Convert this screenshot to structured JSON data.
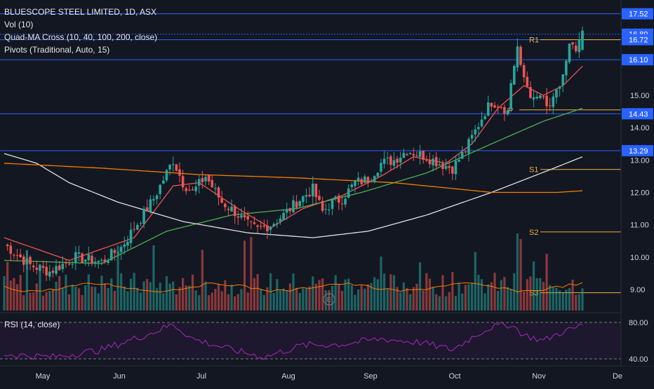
{
  "legend": {
    "title": "BLUESCOPE STEEL LIMITED, 1D, ASX",
    "vol": "Vol (10)",
    "quad_ma": "Quad-MA Cross (10, 40, 100, 200, close)",
    "pivots": "Pivots (Traditional, Auto, 15)"
  },
  "rsi_legend": "RSI (14, close)",
  "colors": {
    "background": "#131722",
    "up": "#26a69a",
    "down": "#ef5350",
    "hline": "#2962ff",
    "pivot": "#f0b23d",
    "ma10": "#ef5350",
    "ma40": "#4caf50",
    "ma100": "#e0e0e0",
    "ma200": "#f57c00",
    "rsi": "#9c27b0",
    "price_tag": "#2962ff"
  },
  "price_axis": {
    "ticks": [
      "15.00",
      "14.00",
      "13.00",
      "12.00",
      "11.00",
      "10.00",
      "9.00"
    ],
    "tags": [
      "17.52",
      "16.89",
      "16.72",
      "16.10",
      "14.43",
      "13.29"
    ]
  },
  "rsi_axis": {
    "ticks": [
      "80.00",
      "40.00"
    ]
  },
  "time_axis": {
    "labels": [
      "May",
      "Jun",
      "Jul",
      "Aug",
      "Sep",
      "Oct",
      "Nov",
      "De"
    ]
  },
  "pivot_labels": [
    "R1",
    "P",
    "S1",
    "S2",
    "S3"
  ],
  "chart_data": {
    "type": "candlestick",
    "symbol": "BLUESCOPE STEEL LIMITED",
    "interval": "1D",
    "exchange": "ASX",
    "ylim": [
      8.4,
      17.9
    ],
    "horizontal_levels": [
      17.52,
      16.89,
      16.72,
      16.1,
      14.43,
      13.29
    ],
    "pivots": {
      "R1": 16.72,
      "P": 14.55,
      "S1": 12.71,
      "S2": 10.78,
      "S3": 8.9
    },
    "close_path": [
      [
        0,
        10.4
      ],
      [
        8,
        9.75
      ],
      [
        14,
        9.55
      ],
      [
        22,
        10.0
      ],
      [
        30,
        9.85
      ],
      [
        36,
        10.3
      ],
      [
        42,
        11.2
      ],
      [
        46,
        11.8
      ],
      [
        50,
        12.6
      ],
      [
        52,
        13.0
      ],
      [
        55,
        12.3
      ],
      [
        58,
        12.0
      ],
      [
        62,
        12.5
      ],
      [
        67,
        11.7
      ],
      [
        71,
        11.4
      ],
      [
        75,
        11.0
      ],
      [
        78,
        10.85
      ],
      [
        82,
        11.0
      ],
      [
        86,
        11.3
      ],
      [
        90,
        11.7
      ],
      [
        95,
        12.1
      ],
      [
        98,
        11.4
      ],
      [
        101,
        11.7
      ],
      [
        104,
        11.8
      ],
      [
        108,
        12.3
      ],
      [
        112,
        12.4
      ],
      [
        116,
        12.9
      ],
      [
        120,
        13.0
      ],
      [
        124,
        13.3
      ],
      [
        130,
        13.1
      ],
      [
        134,
        12.9
      ],
      [
        138,
        12.75
      ],
      [
        142,
        13.3
      ],
      [
        145,
        13.9
      ],
      [
        148,
        14.5
      ],
      [
        150,
        14.8
      ],
      [
        153,
        14.7
      ],
      [
        155,
        14.5
      ],
      [
        156,
        15.4
      ],
      [
        158,
        16.5
      ],
      [
        159,
        15.8
      ],
      [
        161,
        15.3
      ],
      [
        163,
        14.8
      ],
      [
        165,
        15.0
      ],
      [
        167,
        14.6
      ],
      [
        169,
        14.8
      ],
      [
        171,
        15.3
      ],
      [
        173,
        16.0
      ],
      [
        174,
        16.5
      ],
      [
        176,
        16.35
      ],
      [
        177,
        16.55
      ],
      [
        178,
        16.9
      ]
    ],
    "moving_averages": [
      {
        "name": "MA10",
        "points": [
          [
            0,
            10.6
          ],
          [
            20,
            9.9
          ],
          [
            40,
            10.6
          ],
          [
            52,
            12.2
          ],
          [
            60,
            12.3
          ],
          [
            72,
            11.5
          ],
          [
            82,
            10.9
          ],
          [
            92,
            11.5
          ],
          [
            104,
            11.9
          ],
          [
            116,
            12.5
          ],
          [
            126,
            13.1
          ],
          [
            136,
            12.9
          ],
          [
            144,
            13.5
          ],
          [
            152,
            14.6
          ],
          [
            160,
            15.3
          ],
          [
            166,
            15.0
          ],
          [
            172,
            15.3
          ],
          [
            178,
            15.9
          ]
        ]
      },
      {
        "name": "MA40",
        "points": [
          [
            0,
            9.9
          ],
          [
            30,
            9.8
          ],
          [
            50,
            10.8
          ],
          [
            70,
            11.3
          ],
          [
            90,
            11.5
          ],
          [
            110,
            12.0
          ],
          [
            130,
            12.6
          ],
          [
            150,
            13.5
          ],
          [
            166,
            14.2
          ],
          [
            178,
            14.6
          ]
        ]
      },
      {
        "name": "MA100",
        "points": [
          [
            0,
            13.2
          ],
          [
            10,
            12.9
          ],
          [
            20,
            12.3
          ],
          [
            35,
            11.7
          ],
          [
            55,
            11.1
          ],
          [
            75,
            10.75
          ],
          [
            95,
            10.6
          ],
          [
            112,
            10.8
          ],
          [
            130,
            11.3
          ],
          [
            150,
            12.0
          ],
          [
            168,
            12.7
          ],
          [
            178,
            13.1
          ]
        ]
      },
      {
        "name": "MA200",
        "points": [
          [
            0,
            12.9
          ],
          [
            30,
            12.75
          ],
          [
            60,
            12.55
          ],
          [
            90,
            12.45
          ],
          [
            120,
            12.3
          ],
          [
            150,
            12.0
          ],
          [
            170,
            12.0
          ],
          [
            178,
            12.05
          ]
        ]
      }
    ],
    "rsi_ylim": [
      25,
      95
    ],
    "rsi_path": [
      [
        0,
        45
      ],
      [
        15,
        42
      ],
      [
        30,
        50
      ],
      [
        45,
        68
      ],
      [
        52,
        78
      ],
      [
        58,
        62
      ],
      [
        70,
        50
      ],
      [
        80,
        42
      ],
      [
        92,
        55
      ],
      [
        104,
        56
      ],
      [
        116,
        62
      ],
      [
        128,
        58
      ],
      [
        138,
        50
      ],
      [
        146,
        68
      ],
      [
        150,
        75
      ],
      [
        156,
        78
      ],
      [
        160,
        66
      ],
      [
        166,
        60
      ],
      [
        172,
        70
      ],
      [
        176,
        74
      ],
      [
        178,
        78
      ]
    ]
  }
}
